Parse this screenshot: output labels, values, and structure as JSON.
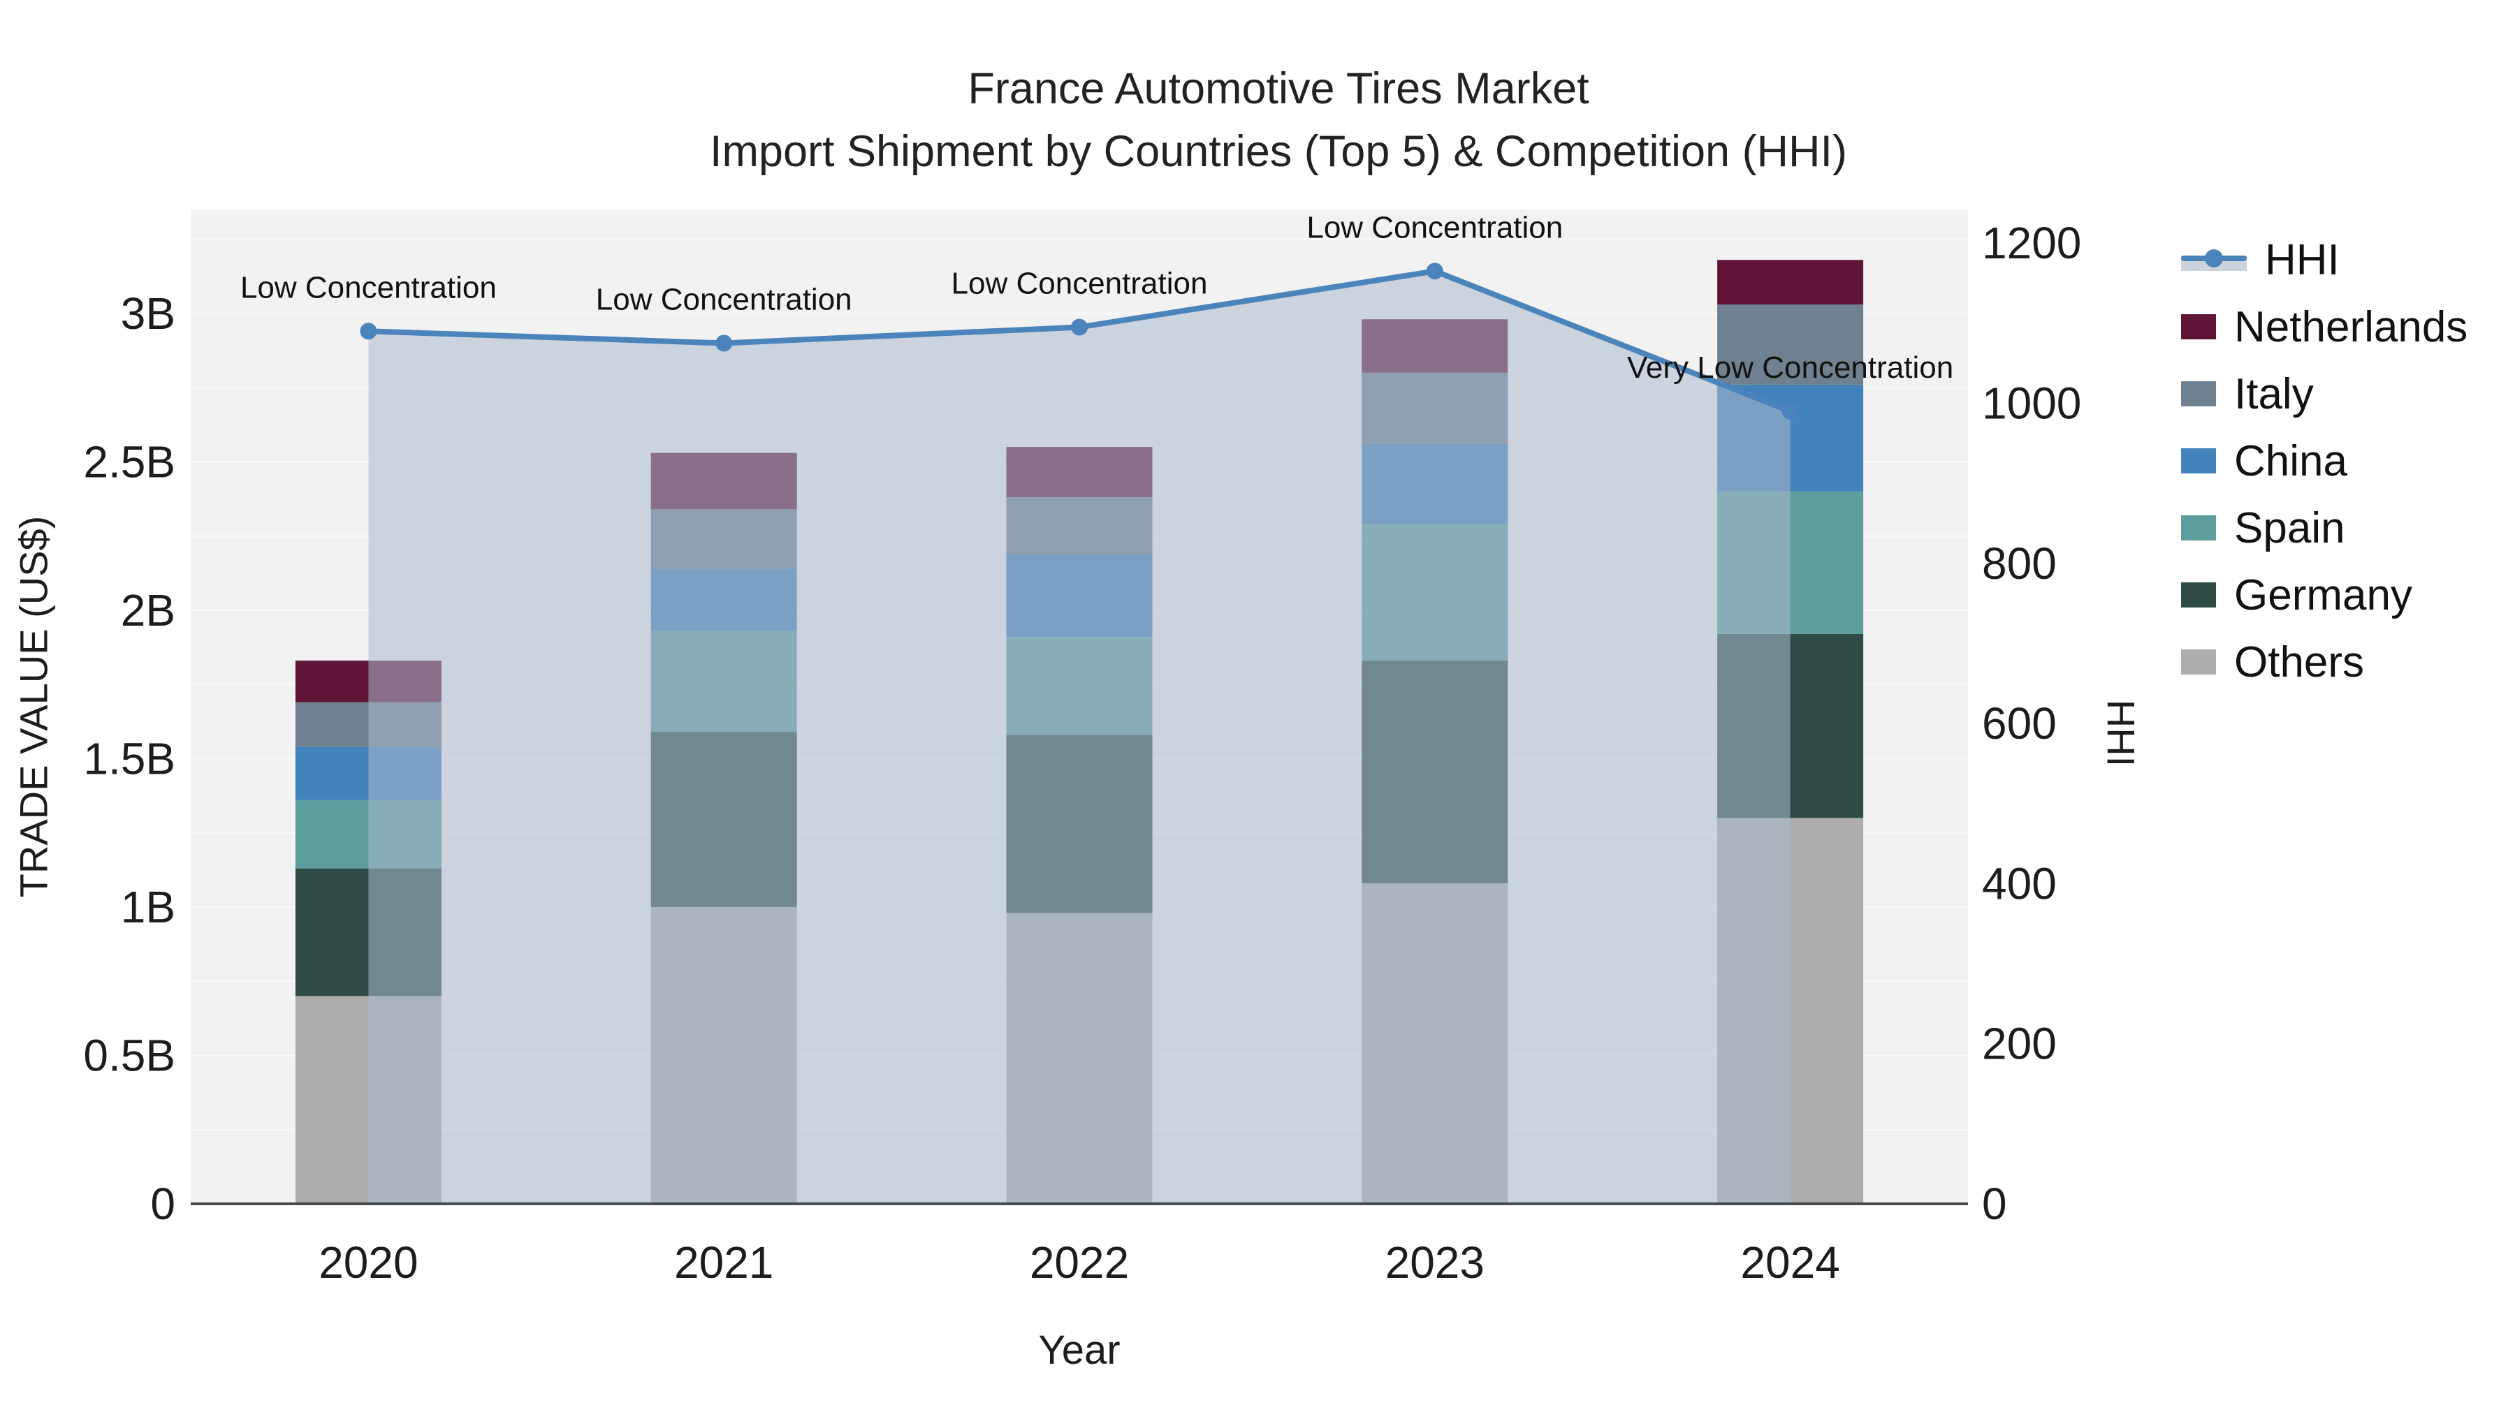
{
  "title": {
    "line1": "France Automotive Tires Market",
    "line2": "Import Shipment by Countries (Top 5) & Competition (HHI)"
  },
  "axes": {
    "x": {
      "title": "Year",
      "tick_labels": [
        "2020",
        "2021",
        "2022",
        "2023",
        "2024"
      ]
    },
    "y_left": {
      "title": "TRADE VALUE (US$)",
      "tick_labels": [
        "0",
        "0.5B",
        "1B",
        "1.5B",
        "2B",
        "2.5B",
        "3B"
      ],
      "tick_values": [
        0,
        0.5,
        1,
        1.5,
        2,
        2.5,
        3
      ],
      "range": [
        0,
        3.35
      ]
    },
    "y_right": {
      "title": "HHI",
      "tick_labels": [
        "0",
        "200",
        "400",
        "600",
        "800",
        "1000",
        "1200"
      ],
      "tick_values": [
        0,
        200,
        400,
        600,
        800,
        1000,
        1200
      ],
      "range": [
        0,
        1242
      ]
    }
  },
  "legend": {
    "position": "right",
    "items": [
      {
        "label": "HHI",
        "type": "line",
        "color": "#4a84ba"
      },
      {
        "label": "Netherlands",
        "type": "square",
        "color": "#601536"
      },
      {
        "label": "Italy",
        "type": "square",
        "color": "#6f8090"
      },
      {
        "label": "China",
        "type": "square",
        "color": "#4382bb"
      },
      {
        "label": "Spain",
        "type": "square",
        "color": "#5e9e9d"
      },
      {
        "label": "Germany",
        "type": "square",
        "color": "#2e4c45"
      },
      {
        "label": "Others",
        "type": "square",
        "color": "#aeadab"
      }
    ]
  },
  "chart_data": {
    "type": "bar",
    "subtype": "stacked-bars-with-dual-axis-line",
    "title": "France Automotive Tires Market — Import Shipment by Countries (Top 5) & Competition (HHI)",
    "xlabel": "Year",
    "ylabel_left": "TRADE VALUE (US$)",
    "ylabel_right": "HHI",
    "categories": [
      "2020",
      "2021",
      "2022",
      "2023",
      "2024"
    ],
    "unit": "billion US$",
    "grid": true,
    "series": [
      {
        "name": "Others",
        "color": "#aeadab",
        "values": [
          0.7,
          1.0,
          0.98,
          1.08,
          1.3
        ]
      },
      {
        "name": "Germany",
        "color": "#2e4c45",
        "values": [
          0.43,
          0.59,
          0.6,
          0.75,
          0.62
        ]
      },
      {
        "name": "Spain",
        "color": "#5e9e9d",
        "values": [
          0.23,
          0.34,
          0.33,
          0.46,
          0.48
        ]
      },
      {
        "name": "China",
        "color": "#4382bb",
        "values": [
          0.18,
          0.21,
          0.28,
          0.27,
          0.36
        ]
      },
      {
        "name": "Italy",
        "color": "#6f8090",
        "values": [
          0.15,
          0.2,
          0.19,
          0.24,
          0.27
        ]
      },
      {
        "name": "Netherlands",
        "color": "#601536",
        "values": [
          0.14,
          0.19,
          0.17,
          0.18,
          0.15
        ]
      }
    ],
    "bar_totals": [
      1.83,
      2.53,
      2.55,
      2.98,
      3.18
    ],
    "line_series": {
      "name": "HHI",
      "axis": "right",
      "color": "#4a84ba",
      "area_fill_color": "rgba(171,185,204,0.55)",
      "values": [
        1090,
        1075,
        1095,
        1165,
        990
      ]
    },
    "annotations": [
      {
        "category": "2020",
        "text": "Low Concentration"
      },
      {
        "category": "2021",
        "text": "Low Concentration"
      },
      {
        "category": "2022",
        "text": "Low Concentration"
      },
      {
        "category": "2023",
        "text": "Low Concentration"
      },
      {
        "category": "2024",
        "text": "Very Low Concentration"
      }
    ]
  },
  "colors": {
    "plot_background": "#f2f2f3",
    "figure_background": "#ffffff",
    "gridline": "#fafafa",
    "x_axis_line": "#4a4a4a",
    "text": "#1c1c1c"
  }
}
